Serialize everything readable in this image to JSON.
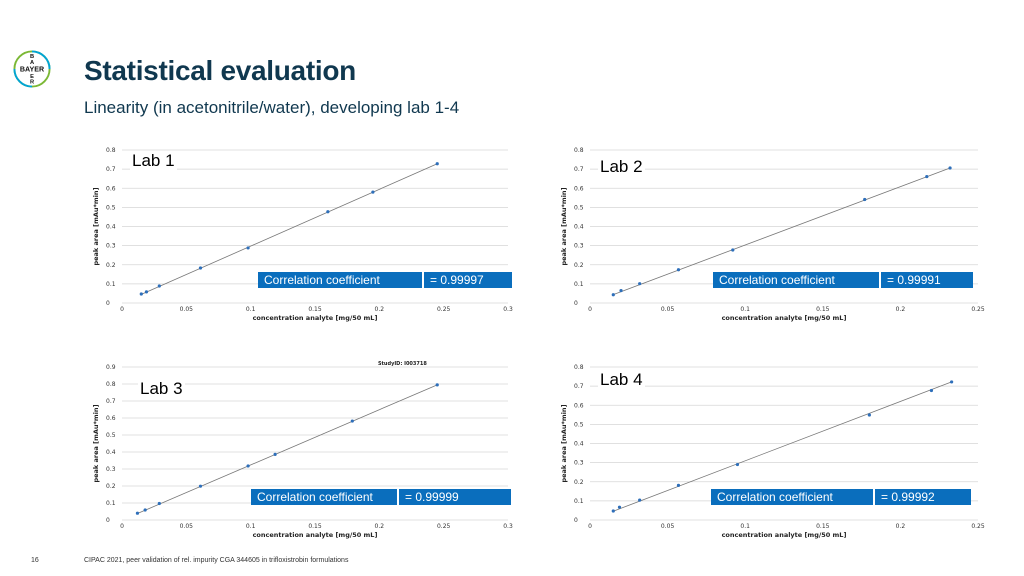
{
  "header": {
    "logo_text": "BAYER",
    "title": "Statistical evaluation",
    "subtitle": "Linearity (in acetonitrile/water), developing lab 1-4"
  },
  "footer": {
    "page_number": "16",
    "text": "CIPAC 2021, peer validation of rel. impurity CGA 344605 in trifloxistrobin formulations"
  },
  "colors": {
    "title": "#10384f",
    "accent": "#0a6ebd",
    "marker": "#2e6fba",
    "line": "#777777"
  },
  "chart_data": [
    {
      "type": "scatter",
      "lab": "Lab 1",
      "xlabel": "concentration analyte [mg/50 mL]",
      "ylabel": "peak area [mAu*min]",
      "xlim": [
        0,
        0.3
      ],
      "ylim": [
        0,
        0.8
      ],
      "xticks": [
        "0",
        "0.05",
        "0.1",
        "0.15",
        "0.2",
        "0.25",
        "0.3"
      ],
      "yticks": [
        "0",
        "0.1",
        "0.2",
        "0.3",
        "0.4",
        "0.5",
        "0.6",
        "0.7",
        "0.8"
      ],
      "note": "",
      "correlation_label": "Correlation coefficient",
      "correlation_value": "= 0.99997",
      "x": [
        0.015,
        0.019,
        0.029,
        0.061,
        0.098,
        0.16,
        0.195,
        0.245
      ],
      "y": [
        0.047,
        0.058,
        0.089,
        0.183,
        0.288,
        0.477,
        0.58,
        0.728
      ],
      "fit_x": [
        0.015,
        0.245
      ],
      "fit_y": [
        0.045,
        0.728
      ]
    },
    {
      "type": "scatter",
      "lab": "Lab 2",
      "xlabel": "concentration analyte [mg/50 mL]",
      "ylabel": "peak area [mAu*min]",
      "xlim": [
        0,
        0.25
      ],
      "ylim": [
        0,
        0.8
      ],
      "xticks": [
        "0",
        "0.05",
        "0.1",
        "0.15",
        "0.2",
        "0.25"
      ],
      "yticks": [
        "0",
        "0.1",
        "0.2",
        "0.3",
        "0.4",
        "0.5",
        "0.6",
        "0.7",
        "0.8"
      ],
      "note": "",
      "correlation_label": "Correlation coefficient",
      "correlation_value": "= 0.99991",
      "x": [
        0.015,
        0.02,
        0.032,
        0.057,
        0.092,
        0.177,
        0.217,
        0.232
      ],
      "y": [
        0.043,
        0.065,
        0.101,
        0.174,
        0.277,
        0.541,
        0.661,
        0.706
      ],
      "fit_x": [
        0.015,
        0.232
      ],
      "fit_y": [
        0.044,
        0.706
      ]
    },
    {
      "type": "scatter",
      "lab": "Lab 3",
      "xlabel": "concentration analyte [mg/50 mL]",
      "ylabel": "peak area [mAu*min]",
      "xlim": [
        0,
        0.3
      ],
      "ylim": [
        0,
        0.9
      ],
      "xticks": [
        "0",
        "0.05",
        "0.1",
        "0.15",
        "0.2",
        "0.25",
        "0.3"
      ],
      "yticks": [
        "0",
        "0.1",
        "0.2",
        "0.3",
        "0.4",
        "0.5",
        "0.6",
        "0.7",
        "0.8",
        "0.9"
      ],
      "note": "StudyID: I003718",
      "correlation_label": "Correlation coefficient",
      "correlation_value": "= 0.99999",
      "x": [
        0.012,
        0.018,
        0.029,
        0.061,
        0.098,
        0.119,
        0.179,
        0.245
      ],
      "y": [
        0.04,
        0.059,
        0.097,
        0.199,
        0.318,
        0.386,
        0.582,
        0.795
      ],
      "fit_x": [
        0.012,
        0.245
      ],
      "fit_y": [
        0.038,
        0.795
      ]
    },
    {
      "type": "scatter",
      "lab": "Lab 4",
      "xlabel": "concentration analyte [mg/50 mL]",
      "ylabel": "peak area [mAu*min]",
      "xlim": [
        0,
        0.25
      ],
      "ylim": [
        0,
        0.8
      ],
      "xticks": [
        "0",
        "0.05",
        "0.1",
        "0.15",
        "0.2",
        "0.25"
      ],
      "yticks": [
        "0",
        "0.1",
        "0.2",
        "0.3",
        "0.4",
        "0.5",
        "0.6",
        "0.7",
        "0.8"
      ],
      "note": "",
      "correlation_label": "Correlation coefficient",
      "correlation_value": "= 0.99992",
      "x": [
        0.015,
        0.019,
        0.032,
        0.057,
        0.095,
        0.18,
        0.22,
        0.233
      ],
      "y": [
        0.047,
        0.067,
        0.104,
        0.181,
        0.29,
        0.549,
        0.677,
        0.722
      ],
      "fit_x": [
        0.015,
        0.233
      ],
      "fit_y": [
        0.046,
        0.722
      ]
    }
  ]
}
